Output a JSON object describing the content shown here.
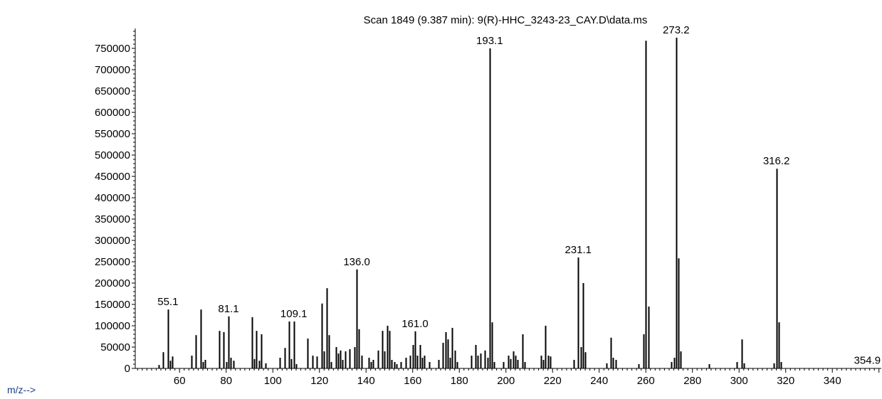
{
  "chart_data": {
    "type": "bar",
    "title": "Scan 1849 (9.387 min): 9(R)-HHC_3243-23_CAY.D\\data.ms",
    "xlabel": "m/z-->",
    "ylabel": "",
    "xlim": [
      41,
      361
    ],
    "ylim": [
      0,
      800000
    ],
    "x_ticks": [
      60,
      80,
      100,
      120,
      140,
      160,
      180,
      200,
      220,
      240,
      260,
      280,
      300,
      320,
      340
    ],
    "y_ticks": [
      0,
      50000,
      100000,
      150000,
      200000,
      250000,
      300000,
      350000,
      400000,
      450000,
      500000,
      550000,
      600000,
      650000,
      700000,
      750000
    ],
    "grid": false,
    "colors": {
      "bars": "#000000",
      "axis_label": "#1a3c8c"
    },
    "peaks": [
      [
        51,
        8000
      ],
      [
        53,
        38000
      ],
      [
        55,
        138000
      ],
      [
        56,
        18000
      ],
      [
        57,
        28000
      ],
      [
        65,
        30000
      ],
      [
        67,
        78000
      ],
      [
        69,
        138000
      ],
      [
        70,
        15000
      ],
      [
        71,
        20000
      ],
      [
        77,
        88000
      ],
      [
        79,
        85000
      ],
      [
        80,
        15000
      ],
      [
        81,
        122000
      ],
      [
        82,
        25000
      ],
      [
        83,
        18000
      ],
      [
        91,
        120000
      ],
      [
        92,
        22000
      ],
      [
        93,
        88000
      ],
      [
        94,
        18000
      ],
      [
        95,
        80000
      ],
      [
        97,
        12000
      ],
      [
        103,
        25000
      ],
      [
        105,
        48000
      ],
      [
        107,
        110000
      ],
      [
        108,
        22000
      ],
      [
        109,
        110000
      ],
      [
        110,
        10000
      ],
      [
        115,
        70000
      ],
      [
        117,
        30000
      ],
      [
        119,
        28000
      ],
      [
        121,
        152000
      ],
      [
        122,
        40000
      ],
      [
        123,
        188000
      ],
      [
        124,
        78000
      ],
      [
        125,
        15000
      ],
      [
        127,
        50000
      ],
      [
        128,
        35000
      ],
      [
        129,
        42000
      ],
      [
        130,
        20000
      ],
      [
        131,
        40000
      ],
      [
        133,
        45000
      ],
      [
        135,
        50000
      ],
      [
        136,
        232000
      ],
      [
        137,
        92000
      ],
      [
        138,
        30000
      ],
      [
        141,
        25000
      ],
      [
        142,
        15000
      ],
      [
        143,
        20000
      ],
      [
        145,
        42000
      ],
      [
        147,
        88000
      ],
      [
        148,
        40000
      ],
      [
        149,
        100000
      ],
      [
        150,
        88000
      ],
      [
        151,
        20000
      ],
      [
        152,
        15000
      ],
      [
        153,
        10000
      ],
      [
        155,
        15000
      ],
      [
        157,
        25000
      ],
      [
        159,
        30000
      ],
      [
        160,
        55000
      ],
      [
        161,
        87000
      ],
      [
        162,
        30000
      ],
      [
        163,
        55000
      ],
      [
        164,
        25000
      ],
      [
        165,
        30000
      ],
      [
        167,
        15000
      ],
      [
        171,
        20000
      ],
      [
        173,
        60000
      ],
      [
        174,
        85000
      ],
      [
        175,
        68000
      ],
      [
        176,
        25000
      ],
      [
        177,
        95000
      ],
      [
        178,
        42000
      ],
      [
        179,
        15000
      ],
      [
        185,
        30000
      ],
      [
        187,
        55000
      ],
      [
        188,
        30000
      ],
      [
        189,
        35000
      ],
      [
        191,
        42000
      ],
      [
        192,
        25000
      ],
      [
        193,
        750000
      ],
      [
        194,
        108000
      ],
      [
        195,
        15000
      ],
      [
        199,
        15000
      ],
      [
        201,
        30000
      ],
      [
        202,
        22000
      ],
      [
        203,
        40000
      ],
      [
        204,
        30000
      ],
      [
        205,
        20000
      ],
      [
        207,
        80000
      ],
      [
        208,
        15000
      ],
      [
        215,
        30000
      ],
      [
        216,
        20000
      ],
      [
        217,
        100000
      ],
      [
        218,
        30000
      ],
      [
        219,
        28000
      ],
      [
        229,
        20000
      ],
      [
        231,
        260000
      ],
      [
        232,
        50000
      ],
      [
        233,
        200000
      ],
      [
        234,
        38000
      ],
      [
        243,
        12000
      ],
      [
        245,
        72000
      ],
      [
        246,
        25000
      ],
      [
        247,
        20000
      ],
      [
        257,
        10000
      ],
      [
        259,
        80000
      ],
      [
        260,
        768000
      ],
      [
        261,
        145000
      ],
      [
        271,
        15000
      ],
      [
        272,
        25000
      ],
      [
        273,
        775000
      ],
      [
        274,
        258000
      ],
      [
        275,
        40000
      ],
      [
        287,
        10000
      ],
      [
        299,
        15000
      ],
      [
        301,
        68000
      ],
      [
        302,
        12000
      ],
      [
        315,
        12000
      ],
      [
        316,
        468000
      ],
      [
        317,
        108000
      ],
      [
        318,
        15000
      ]
    ],
    "annotations": [
      {
        "x": 55,
        "y": 138000,
        "label": "55.1"
      },
      {
        "x": 81,
        "y": 122000,
        "label": "81.1"
      },
      {
        "x": 109,
        "y": 110000,
        "label": "109.1"
      },
      {
        "x": 136,
        "y": 232000,
        "label": "136.0"
      },
      {
        "x": 161,
        "y": 87000,
        "label": "161.0"
      },
      {
        "x": 193,
        "y": 750000,
        "label": "193.1"
      },
      {
        "x": 231,
        "y": 260000,
        "label": "231.1"
      },
      {
        "x": 273,
        "y": 775000,
        "label": "273.2"
      },
      {
        "x": 316,
        "y": 468000,
        "label": "316.2"
      },
      {
        "x": 355,
        "y": 1000,
        "label": "354.9"
      }
    ]
  }
}
